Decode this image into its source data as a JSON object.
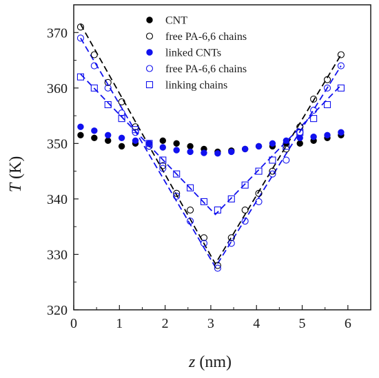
{
  "chart_data": {
    "type": "scatter",
    "xlabel_var": "z",
    "xlabel_unit": " (nm)",
    "ylabel_var": "T",
    "ylabel_unit": " (K)",
    "xlim": [
      0,
      6.5
    ],
    "ylim": [
      320,
      375
    ],
    "xticks": [
      0,
      1,
      2,
      3,
      4,
      5,
      6
    ],
    "yticks": [
      320,
      330,
      340,
      350,
      360,
      370
    ],
    "xtick_labels": [
      "0",
      "1",
      "2",
      "3",
      "4",
      "5",
      "6"
    ],
    "ytick_labels": [
      "320",
      "330",
      "340",
      "350",
      "360",
      "370"
    ],
    "legend_position": "top-center",
    "series": [
      {
        "name": "CNT",
        "marker": "filled-circle",
        "color": "#000000",
        "x": [
          0.15,
          0.45,
          0.75,
          1.05,
          1.35,
          1.65,
          1.95,
          2.25,
          2.55,
          2.85,
          3.15,
          3.45,
          3.75,
          4.05,
          4.35,
          4.65,
          4.95,
          5.25,
          5.55,
          5.85
        ],
        "y": [
          351.5,
          351.0,
          350.5,
          349.5,
          350.0,
          350.0,
          350.5,
          350.0,
          349.5,
          349.0,
          348.5,
          348.7,
          349.0,
          349.5,
          349.5,
          350.0,
          350.0,
          350.5,
          351.0,
          351.5
        ]
      },
      {
        "name": "free PA-6,6 chains",
        "marker": "open-circle",
        "color": "#000000",
        "x": [
          0.15,
          0.45,
          0.75,
          1.05,
          1.35,
          1.65,
          1.95,
          2.25,
          2.55,
          2.85,
          3.15,
          3.45,
          3.75,
          4.05,
          4.35,
          4.65,
          4.95,
          5.25,
          5.55,
          5.85
        ],
        "y": [
          371,
          366,
          361,
          357.5,
          353,
          349.5,
          346,
          341,
          338,
          333,
          328,
          333,
          338,
          341,
          345,
          349,
          353,
          358,
          361.5,
          366
        ]
      },
      {
        "name": "linked CNTs",
        "marker": "filled-circle",
        "color": "#1111ee",
        "x": [
          0.15,
          0.45,
          0.75,
          1.05,
          1.35,
          1.65,
          1.95,
          2.25,
          2.55,
          2.85,
          3.15,
          3.45,
          3.75,
          4.05,
          4.35,
          4.65,
          4.95,
          5.25,
          5.55,
          5.85
        ],
        "y": [
          353,
          352.3,
          351.5,
          351.0,
          350.5,
          350.0,
          349.3,
          348.8,
          348.5,
          348.3,
          348.2,
          348.5,
          349.0,
          349.5,
          350.0,
          350.5,
          351.0,
          351.2,
          351.5,
          352.0
        ]
      },
      {
        "name": "free PA-6,6 chains",
        "marker": "open-circle",
        "color": "#1111ee",
        "x": [
          0.15,
          0.45,
          0.75,
          1.05,
          1.35,
          1.65,
          1.95,
          2.25,
          2.55,
          2.85,
          3.15,
          3.45,
          3.75,
          4.05,
          4.35,
          4.65,
          4.95,
          5.25,
          5.55,
          5.85
        ],
        "y": [
          369,
          364,
          360,
          355.5,
          352,
          349.5,
          345.5,
          340.5,
          336,
          332,
          327.5,
          332,
          336,
          339.5,
          344.5,
          347,
          352,
          356,
          360,
          364
        ]
      },
      {
        "name": "linking chains",
        "marker": "open-square",
        "color": "#1111ee",
        "x": [
          0.15,
          0.45,
          0.75,
          1.05,
          1.35,
          1.65,
          1.95,
          2.25,
          2.55,
          2.85,
          3.15,
          3.45,
          3.75,
          4.05,
          4.35,
          4.65,
          4.95,
          5.25,
          5.55,
          5.85
        ],
        "y": [
          362,
          360,
          357,
          354.5,
          352.5,
          350,
          347,
          344.5,
          342,
          339.5,
          338,
          340,
          342.5,
          345,
          347,
          349.5,
          352,
          354.5,
          357,
          360
        ]
      }
    ],
    "fit_lines": [
      {
        "series_ref": "free PA-6,6 chains (CNT)",
        "color": "#000000",
        "style": "dashed",
        "points": [
          [
            0.15,
            371.5
          ],
          [
            3.1,
            328.3
          ],
          [
            5.85,
            366.0
          ]
        ]
      },
      {
        "series_ref": "free PA-6,6 chains (linked)",
        "color": "#1111ee",
        "style": "dashed",
        "points": [
          [
            0.15,
            369.0
          ],
          [
            3.1,
            327.7
          ],
          [
            5.85,
            364.0
          ]
        ]
      },
      {
        "series_ref": "linking chains",
        "color": "#1111ee",
        "style": "dashed",
        "points": [
          [
            0.15,
            362.5
          ],
          [
            3.1,
            337.2
          ],
          [
            5.85,
            360.5
          ]
        ]
      }
    ]
  }
}
